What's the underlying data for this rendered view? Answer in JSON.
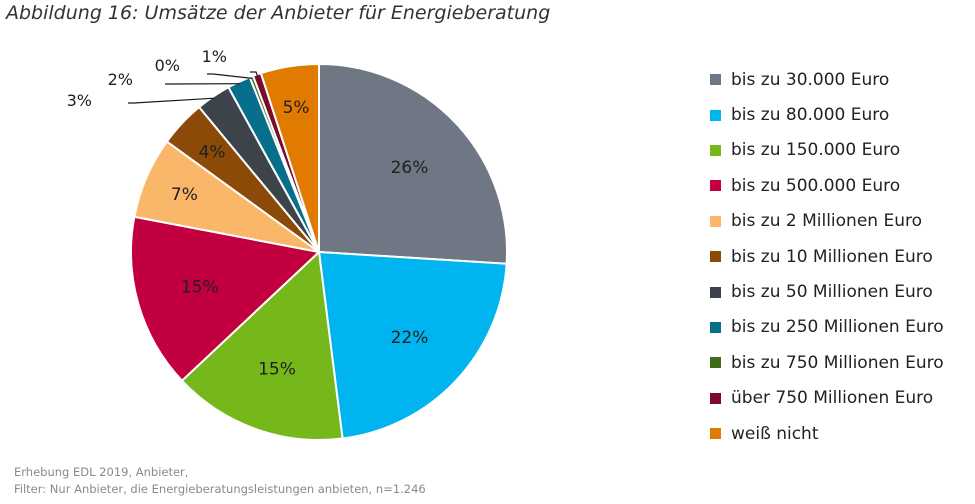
{
  "title": "Abbildung 16: Umsätze der Anbieter für Energieberatung",
  "chart_data": {
    "type": "pie",
    "legend_position": "right",
    "slices": [
      {
        "label": "bis zu 30.000 Euro",
        "value": 26,
        "display": "26%",
        "color": "#6e7783"
      },
      {
        "label": "bis zu 80.000 Euro",
        "value": 22,
        "display": "22%",
        "color": "#00b4ef"
      },
      {
        "label": "bis zu 150.000 Euro",
        "value": 15,
        "display": "15%",
        "color": "#76b81b"
      },
      {
        "label": "bis zu 500.000 Euro",
        "value": 15,
        "display": "15%",
        "color": "#c2003f"
      },
      {
        "label": "bis zu 2 Millionen Euro",
        "value": 7,
        "display": "7%",
        "color": "#fbb769"
      },
      {
        "label": "bis zu 10 Millionen Euro",
        "value": 4,
        "display": "4%",
        "color": "#8b4a07"
      },
      {
        "label": "bis zu 50 Millionen Euro",
        "value": 3,
        "display": "3%",
        "color": "#3c434b"
      },
      {
        "label": "bis zu 250 Millionen Euro",
        "value": 2,
        "display": "2%",
        "color": "#076f8c"
      },
      {
        "label": "bis zu 750 Millionen Euro",
        "value": 0.3,
        "display": "0%",
        "color": "#3f6c16"
      },
      {
        "label": "über 750 Millionen Euro",
        "value": 0.7,
        "display": "1%",
        "color": "#7a0b2a"
      },
      {
        "label": "weiß nicht",
        "value": 5,
        "display": "5%",
        "color": "#e07a00"
      }
    ]
  },
  "footnote": {
    "line1": "Erhebung EDL 2019, Anbieter,",
    "line2": "Filter: Nur Anbieter, die Energieberatungsleistungen anbieten, n=1.246"
  }
}
